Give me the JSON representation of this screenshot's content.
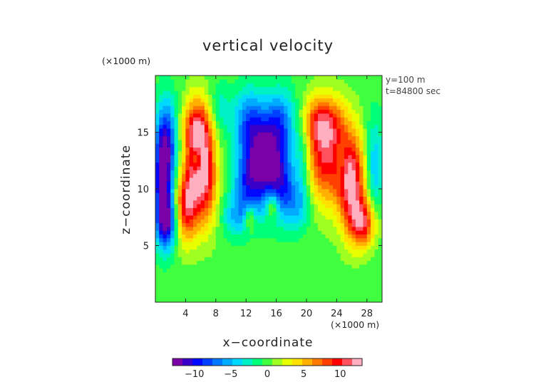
{
  "chart_data": {
    "type": "heatmap",
    "title": "vertical velocity",
    "xlabel": "x−coordinate",
    "ylabel": "z−coordinate",
    "x_unit": "(×1000 m)",
    "y_unit": "(×1000 m)",
    "annotations": [
      "y=100 m",
      "t=84800 sec"
    ],
    "xlim": [
      0,
      30
    ],
    "ylim": [
      0,
      20
    ],
    "x_ticks": [
      4,
      8,
      12,
      16,
      20,
      24,
      28
    ],
    "x_tick_labels": [
      "4",
      "8",
      "12",
      "16",
      "20",
      "24",
      "28"
    ],
    "y_ticks": [
      5,
      10,
      15
    ],
    "y_tick_labels": [
      "5",
      "10",
      "15"
    ],
    "colorbar": {
      "range": [
        -13,
        13
      ],
      "ticks": [
        -10,
        -5,
        0,
        5,
        10
      ],
      "tick_labels": [
        "−10",
        "−5",
        "0",
        "5",
        "10"
      ],
      "colors": [
        "#7a00a8",
        "#3a00c8",
        "#0008ff",
        "#0040ff",
        "#0078ff",
        "#00aaff",
        "#00d8ff",
        "#00f0c8",
        "#00ff78",
        "#40ff40",
        "#a0ff20",
        "#e8ff00",
        "#ffe000",
        "#ffb000",
        "#ff7800",
        "#ff4000",
        "#ff0000",
        "#ff5060",
        "#ffb0c0"
      ]
    },
    "features": [
      {
        "x": 1.0,
        "z": 10.5,
        "value": -11,
        "sx": 0.9,
        "sz": 3.0
      },
      {
        "x": 1.5,
        "z": 14.5,
        "value": -8,
        "sx": 1.0,
        "sz": 2.5
      },
      {
        "x": 1.5,
        "z": 7.0,
        "value": -9,
        "sx": 0.9,
        "sz": 1.6
      },
      {
        "x": 5.5,
        "z": 12.5,
        "value": 11,
        "sx": 1.1,
        "sz": 3.5
      },
      {
        "x": 4.0,
        "z": 8.5,
        "value": 9,
        "sx": 1.0,
        "sz": 2.2
      },
      {
        "x": 7.0,
        "z": 11.0,
        "value": 7,
        "sx": 1.0,
        "sz": 3.0
      },
      {
        "x": 5.5,
        "z": 15.5,
        "value": 5,
        "sx": 1.5,
        "sz": 1.5
      },
      {
        "x": 5.5,
        "z": 12.6,
        "value": -6,
        "sx": 0.45,
        "sz": 0.9
      },
      {
        "x": 14.5,
        "z": 13.0,
        "value": -10,
        "sx": 2.0,
        "sz": 2.0
      },
      {
        "x": 12.5,
        "z": 16.0,
        "value": -7,
        "sx": 1.5,
        "sz": 2.0
      },
      {
        "x": 16.5,
        "z": 16.0,
        "value": -7,
        "sx": 1.5,
        "sz": 2.0
      },
      {
        "x": 12.5,
        "z": 10.0,
        "value": -8,
        "sx": 1.5,
        "sz": 2.0
      },
      {
        "x": 16.5,
        "z": 10.0,
        "value": -8,
        "sx": 1.5,
        "sz": 2.0
      },
      {
        "x": 10.5,
        "z": 7.5,
        "value": -4,
        "sx": 1.2,
        "sz": 1.2
      },
      {
        "x": 19.0,
        "z": 8.5,
        "value": -4,
        "sx": 1.2,
        "sz": 1.5
      },
      {
        "x": 12.5,
        "z": 7.5,
        "value": 5,
        "sx": 0.5,
        "sz": 0.8
      },
      {
        "x": 15.5,
        "z": 8.5,
        "value": 6,
        "sx": 0.6,
        "sz": 0.8
      },
      {
        "x": 22.5,
        "z": 13.0,
        "value": 10,
        "sx": 2.0,
        "sz": 3.0
      },
      {
        "x": 26.0,
        "z": 10.5,
        "value": 11,
        "sx": 1.3,
        "sz": 3.0
      },
      {
        "x": 27.5,
        "z": 7.0,
        "value": 9,
        "sx": 1.2,
        "sz": 1.5
      },
      {
        "x": 22.0,
        "z": 16.0,
        "value": 6,
        "sx": 2.0,
        "sz": 1.5
      },
      {
        "x": 24.5,
        "z": 12.5,
        "value": -3,
        "sx": 0.5,
        "sz": 1.2
      },
      {
        "x": 29.0,
        "z": 12.0,
        "value": -5,
        "sx": 0.8,
        "sz": 3.0
      },
      {
        "x": 19.5,
        "z": 13.0,
        "value": -4,
        "sx": 0.8,
        "sz": 2.5
      },
      {
        "x": 8.5,
        "z": 17.0,
        "value": -3,
        "sx": 1.0,
        "sz": 1.5
      }
    ]
  }
}
